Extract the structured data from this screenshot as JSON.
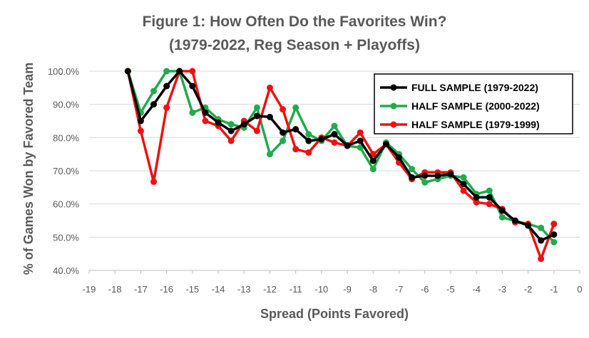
{
  "chart_data": {
    "type": "line",
    "title_lines": [
      "Figure 1: How Often Do the Favorites Win?",
      "(1979-2022, Reg Season + Playoffs)"
    ],
    "xlabel": "Spread (Points Favored)",
    "ylabel": "% of Games Won by Favored Team",
    "xlim": [
      -19,
      0
    ],
    "ylim": [
      0.4,
      1.0
    ],
    "x_ticks": [
      -19,
      -18,
      -17,
      -16,
      -15,
      -14,
      -13,
      -12,
      -11,
      -10,
      -9,
      -8,
      -7,
      -6,
      -5,
      -4,
      -3,
      -2,
      -1,
      0
    ],
    "x_tick_labels": [
      "-19",
      "-18",
      "-17",
      "-16",
      "-15",
      "-14",
      "-13",
      "-12",
      "-11",
      "-10",
      "-9",
      "-8",
      "-7",
      "-6",
      "-5",
      "-4",
      "-3",
      "-2",
      "-1",
      "0"
    ],
    "y_ticks": [
      0.4,
      0.5,
      0.6,
      0.7,
      0.8,
      0.9,
      1.0
    ],
    "y_tick_labels": [
      "40.0%",
      "50.0%",
      "60.0%",
      "70.0%",
      "80.0%",
      "90.0%",
      "100.0%"
    ],
    "grid": "horizontal",
    "legend_position": "top-right",
    "x": [
      -17.5,
      -17,
      -16.5,
      -16,
      -15.5,
      -15,
      -14.5,
      -14,
      -13.5,
      -13,
      -12.5,
      -12,
      -11.5,
      -11,
      -10.5,
      -10,
      -9.5,
      -9,
      -8.5,
      -8,
      -7.5,
      -7,
      -6.5,
      -6,
      -5.5,
      -5,
      -4.5,
      -4,
      -3.5,
      -3,
      -2.5,
      -2,
      -1.5,
      -1
    ],
    "series": [
      {
        "name": "FULL SAMPLE (1979-2022)",
        "color": "#000000",
        "values": [
          1.0,
          0.85,
          0.9,
          0.955,
          1.0,
          0.955,
          0.875,
          0.845,
          0.82,
          0.84,
          0.865,
          0.862,
          0.815,
          0.825,
          0.79,
          0.795,
          0.81,
          0.776,
          0.79,
          0.73,
          0.78,
          0.74,
          0.68,
          0.685,
          0.685,
          0.69,
          0.66,
          0.62,
          0.62,
          0.58,
          0.55,
          0.535,
          0.49,
          0.508
        ]
      },
      {
        "name": "HALF SAMPLE (2000-2022)",
        "color": "#22aa4e",
        "values": [
          1.0,
          0.875,
          0.94,
          1.0,
          1.0,
          0.875,
          0.89,
          0.855,
          0.84,
          0.83,
          0.89,
          0.75,
          0.79,
          0.89,
          0.81,
          0.79,
          0.835,
          0.775,
          0.77,
          0.705,
          0.785,
          0.75,
          0.705,
          0.665,
          0.675,
          0.685,
          0.68,
          0.63,
          0.64,
          0.56,
          0.548,
          0.54,
          0.528,
          0.485
        ]
      },
      {
        "name": "HALF SAMPLE (1979-1999)",
        "color": "#ee1111",
        "values": [
          1.0,
          0.82,
          0.667,
          0.89,
          1.0,
          1.0,
          0.85,
          0.835,
          0.79,
          0.85,
          0.82,
          0.95,
          0.885,
          0.765,
          0.755,
          0.8,
          0.785,
          0.775,
          0.815,
          0.75,
          0.78,
          0.725,
          0.675,
          0.695,
          0.695,
          0.695,
          0.64,
          0.605,
          0.6,
          0.585,
          0.545,
          0.54,
          0.435,
          0.54
        ]
      }
    ]
  }
}
